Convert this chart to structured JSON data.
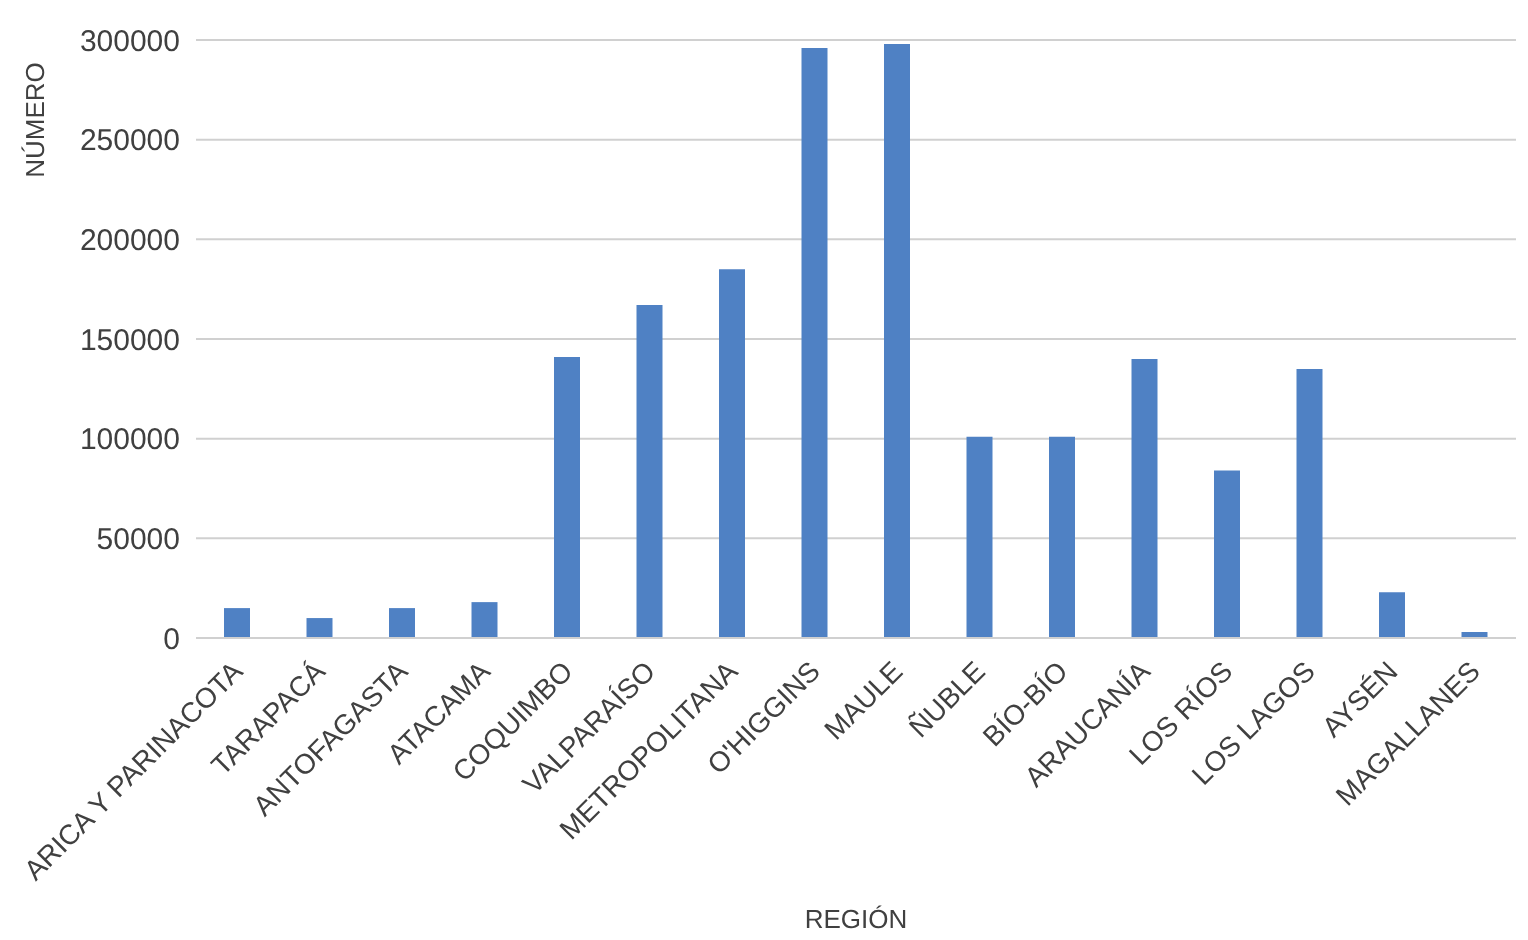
{
  "chart_data": {
    "type": "bar",
    "xlabel": "REGIÓN",
    "ylabel": "NÚMERO",
    "categories": [
      "ARICA Y PARINACOTA",
      "TARAPACÁ",
      "ANTOFAGASTA",
      "ATACAMA",
      "COQUIMBO",
      "VALPARAÍSO",
      "METROPOLITANA",
      "O'HIGGINS",
      "MAULE",
      "ÑUBLE",
      "BÍO-BÍO",
      "ARAUCANÍA",
      "LOS RÍOS",
      "LOS LAGOS",
      "AYSÉN",
      "MAGALLANES"
    ],
    "values": [
      15000,
      10000,
      15000,
      18000,
      141000,
      167000,
      185000,
      296000,
      298000,
      101000,
      101000,
      140000,
      84000,
      135000,
      23000,
      3000
    ],
    "color": "#4f81c4",
    "ylim": [
      0,
      300000
    ],
    "yticks": [
      0,
      50000,
      100000,
      150000,
      200000,
      250000,
      300000
    ],
    "grid": "y"
  }
}
